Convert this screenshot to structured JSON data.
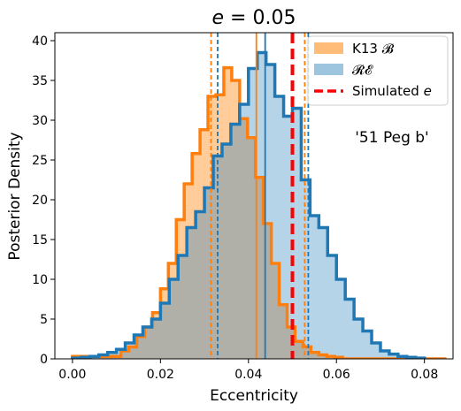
{
  "chart_data": {
    "type": "histogram",
    "title": "e = 0.05",
    "title_italic_symbol": "e",
    "xlabel": "Eccentricity",
    "ylabel": "Posterior Density",
    "xlim": [
      -0.004,
      0.0865
    ],
    "ylim": [
      0,
      41
    ],
    "xticks": [
      0.0,
      0.02,
      0.04,
      0.06,
      0.08
    ],
    "xtick_labels": [
      "0.00",
      "0.02",
      "0.04",
      "0.06",
      "0.08"
    ],
    "yticks": [
      0,
      5,
      10,
      15,
      20,
      25,
      30,
      35,
      40
    ],
    "ytick_labels": [
      "0",
      "5",
      "10",
      "15",
      "20",
      "25",
      "30",
      "35",
      "40"
    ],
    "annotation": "'51 Peg b'",
    "legend_position": "top-right",
    "legend": [
      {
        "label": "K13 𝓑",
        "kind": "patch",
        "color": "#ffbb78"
      },
      {
        "label": "𝓡𝓔",
        "kind": "patch",
        "color": "#9ec5e0"
      },
      {
        "label": "Simulated e",
        "kind": "dashed-line",
        "color": "#ff0000"
      }
    ],
    "series": [
      {
        "name": "K13 𝓑",
        "line_color": "#ff7f0e",
        "fill_color": "#ffbb78",
        "bins": [
          [
            0.0,
            0.011,
            0.3
          ],
          [
            0.011,
            0.0128,
            1.0
          ],
          [
            0.0128,
            0.0146,
            1.5
          ],
          [
            0.0146,
            0.0164,
            2.8
          ],
          [
            0.0164,
            0.0182,
            4.0
          ],
          [
            0.0182,
            0.02,
            5.8
          ],
          [
            0.02,
            0.0218,
            8.8
          ],
          [
            0.0218,
            0.0236,
            12.0
          ],
          [
            0.0236,
            0.0254,
            17.5
          ],
          [
            0.0254,
            0.0272,
            22.0
          ],
          [
            0.0272,
            0.029,
            25.8
          ],
          [
            0.029,
            0.0308,
            28.8
          ],
          [
            0.0308,
            0.0326,
            33.0
          ],
          [
            0.0326,
            0.0344,
            33.2
          ],
          [
            0.0344,
            0.0362,
            36.6
          ],
          [
            0.0362,
            0.038,
            35.0
          ],
          [
            0.038,
            0.0398,
            30.2
          ],
          [
            0.0398,
            0.0416,
            27.8
          ],
          [
            0.0416,
            0.0434,
            22.8
          ],
          [
            0.0434,
            0.0452,
            17.0
          ],
          [
            0.0452,
            0.047,
            12.0
          ],
          [
            0.047,
            0.0488,
            6.8
          ],
          [
            0.0488,
            0.0506,
            4.0
          ],
          [
            0.0506,
            0.0524,
            2.2
          ],
          [
            0.0524,
            0.0542,
            1.5
          ],
          [
            0.0542,
            0.056,
            0.8
          ],
          [
            0.056,
            0.0578,
            0.5
          ],
          [
            0.0578,
            0.0596,
            0.3
          ],
          [
            0.0596,
            0.0614,
            0.2
          ],
          [
            0.0614,
            0.085,
            0.0
          ]
        ],
        "median": 0.0418,
        "interval": [
          0.0315,
          0.0528
        ]
      },
      {
        "name": "𝓡𝓔",
        "line_color": "#1f77b4",
        "fill_color": "#9ec5e0",
        "bins": [
          [
            0.0,
            0.002,
            0.1
          ],
          [
            0.002,
            0.004,
            0.2
          ],
          [
            0.004,
            0.006,
            0.3
          ],
          [
            0.006,
            0.008,
            0.5
          ],
          [
            0.008,
            0.01,
            0.8
          ],
          [
            0.01,
            0.012,
            1.2
          ],
          [
            0.012,
            0.014,
            2.0
          ],
          [
            0.014,
            0.016,
            3.0
          ],
          [
            0.016,
            0.018,
            4.0
          ],
          [
            0.018,
            0.02,
            5.0
          ],
          [
            0.02,
            0.022,
            7.0
          ],
          [
            0.022,
            0.024,
            10.0
          ],
          [
            0.024,
            0.026,
            13.0
          ],
          [
            0.026,
            0.028,
            16.5
          ],
          [
            0.028,
            0.03,
            18.5
          ],
          [
            0.03,
            0.032,
            21.5
          ],
          [
            0.032,
            0.034,
            25.5
          ],
          [
            0.034,
            0.036,
            27.0
          ],
          [
            0.036,
            0.038,
            29.5
          ],
          [
            0.038,
            0.04,
            32.0
          ],
          [
            0.04,
            0.042,
            36.5
          ],
          [
            0.042,
            0.044,
            38.5
          ],
          [
            0.044,
            0.046,
            37.0
          ],
          [
            0.046,
            0.048,
            33.0
          ],
          [
            0.048,
            0.05,
            30.5
          ],
          [
            0.05,
            0.052,
            31.5
          ],
          [
            0.052,
            0.054,
            22.5
          ],
          [
            0.054,
            0.056,
            18.0
          ],
          [
            0.056,
            0.058,
            16.5
          ],
          [
            0.058,
            0.06,
            13.0
          ],
          [
            0.06,
            0.062,
            10.0
          ],
          [
            0.062,
            0.064,
            7.5
          ],
          [
            0.064,
            0.066,
            5.0
          ],
          [
            0.066,
            0.068,
            3.5
          ],
          [
            0.068,
            0.07,
            2.0
          ],
          [
            0.07,
            0.072,
            1.0
          ],
          [
            0.072,
            0.074,
            0.6
          ],
          [
            0.074,
            0.076,
            0.3
          ],
          [
            0.076,
            0.078,
            0.2
          ],
          [
            0.078,
            0.08,
            0.1
          ]
        ],
        "median": 0.0438,
        "interval": [
          0.033,
          0.0536
        ]
      }
    ],
    "simulated_e": 0.05
  }
}
